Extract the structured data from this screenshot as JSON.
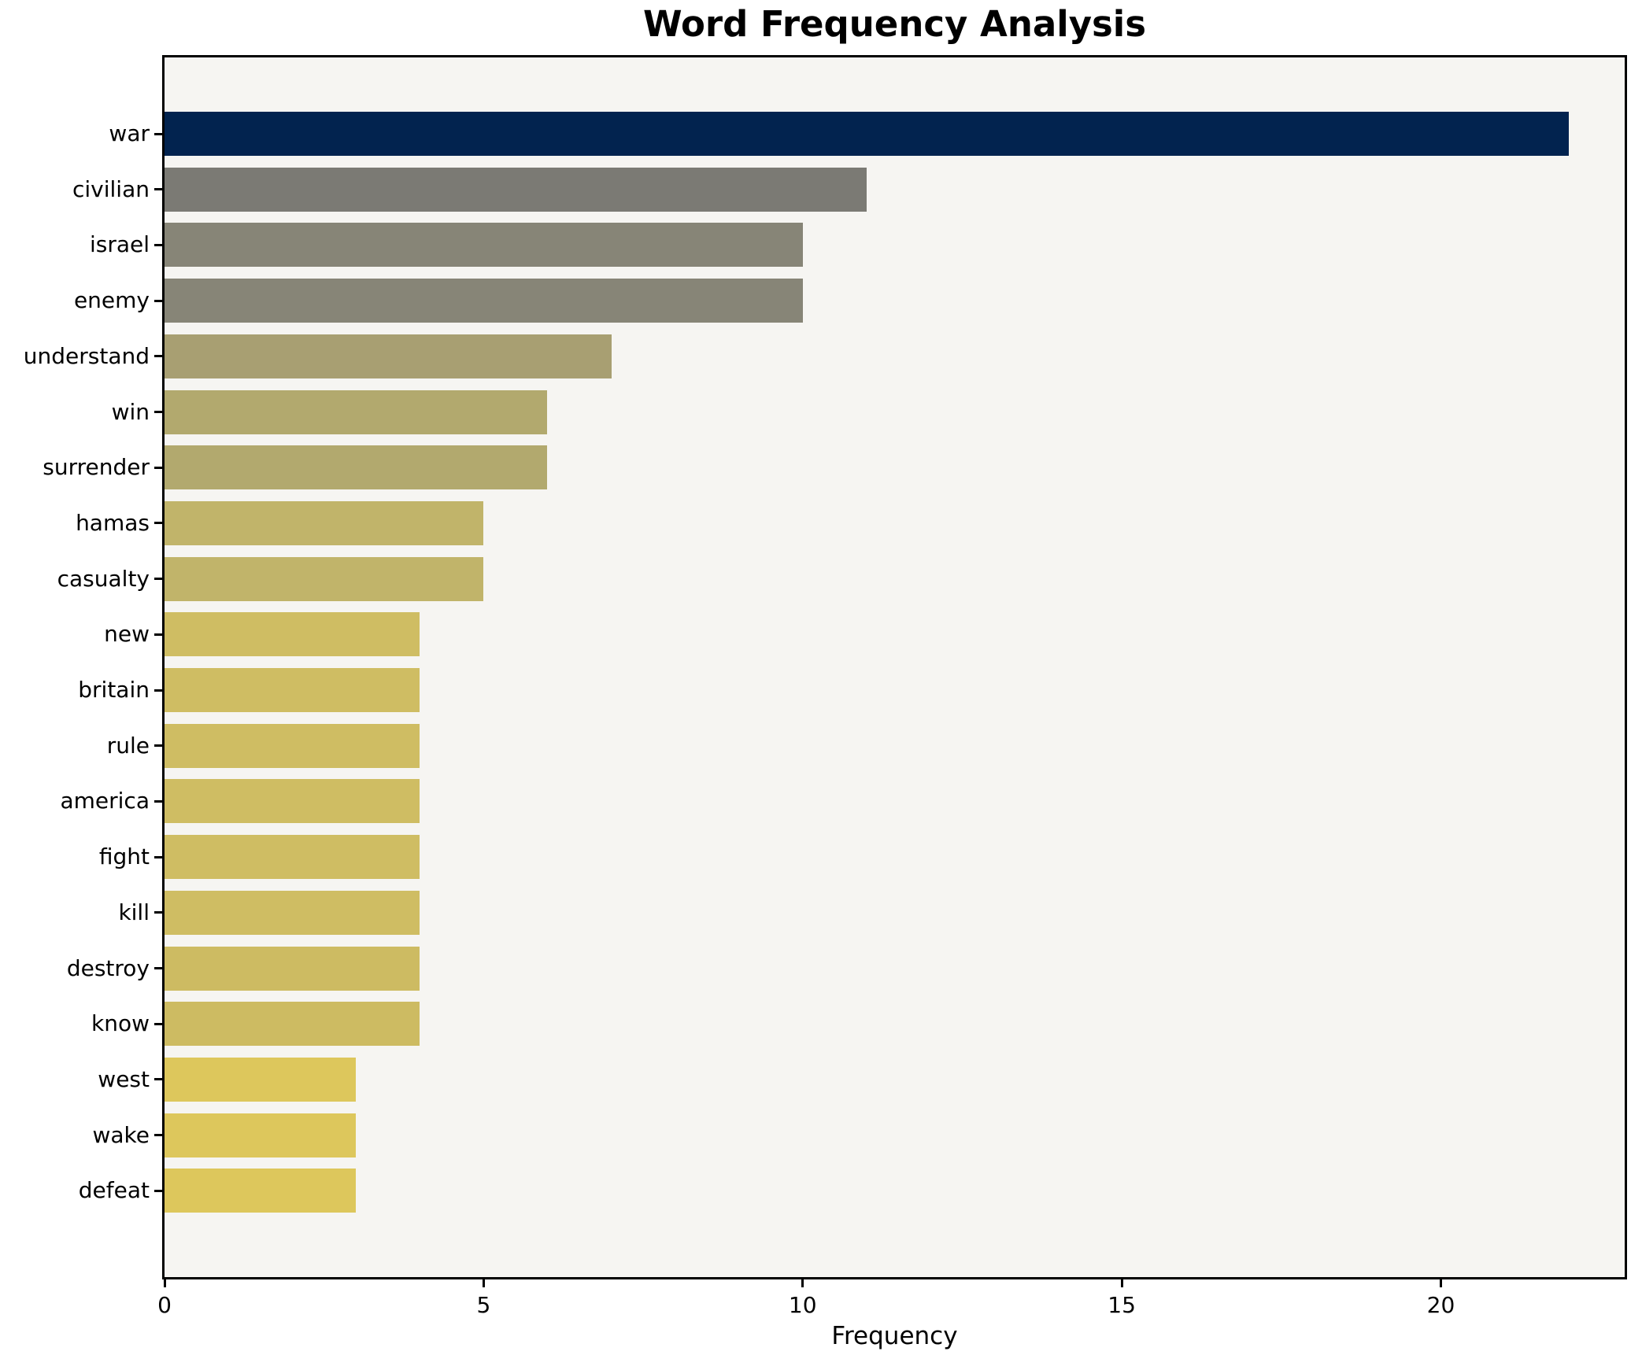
{
  "chart_data": {
    "type": "bar",
    "orientation": "horizontal",
    "title": "Word Frequency Analysis",
    "xlabel": "Frequency",
    "ylabel": "",
    "categories": [
      "war",
      "civilian",
      "israel",
      "enemy",
      "understand",
      "win",
      "surrender",
      "hamas",
      "casualty",
      "new",
      "britain",
      "rule",
      "america",
      "fight",
      "kill",
      "destroy",
      "know",
      "west",
      "wake",
      "defeat"
    ],
    "values": [
      22,
      11,
      10,
      10,
      7,
      6,
      6,
      5,
      5,
      4,
      4,
      4,
      4,
      4,
      4,
      4,
      4,
      3,
      3,
      3
    ],
    "bar_colors": [
      "#02234f",
      "#7b7a74",
      "#878577",
      "#878577",
      "#a89f72",
      "#b2a96e",
      "#b2a96e",
      "#c1b46a",
      "#c1b46a",
      "#cfbd63",
      "#cfbd63",
      "#cfbd63",
      "#cfbd63",
      "#cfbd63",
      "#cfbd63",
      "#cdbb62",
      "#cdbb62",
      "#ddc75c",
      "#ddc75c",
      "#ddc75c"
    ],
    "xticks": [
      0,
      5,
      10,
      15,
      20
    ],
    "xlim": [
      0,
      22.88
    ],
    "grid": false,
    "legend_position": "none",
    "plot_background": "#f6f5f2",
    "figure_background": "#ffffff",
    "spine_color": "#000000",
    "colormap": "cividis"
  }
}
